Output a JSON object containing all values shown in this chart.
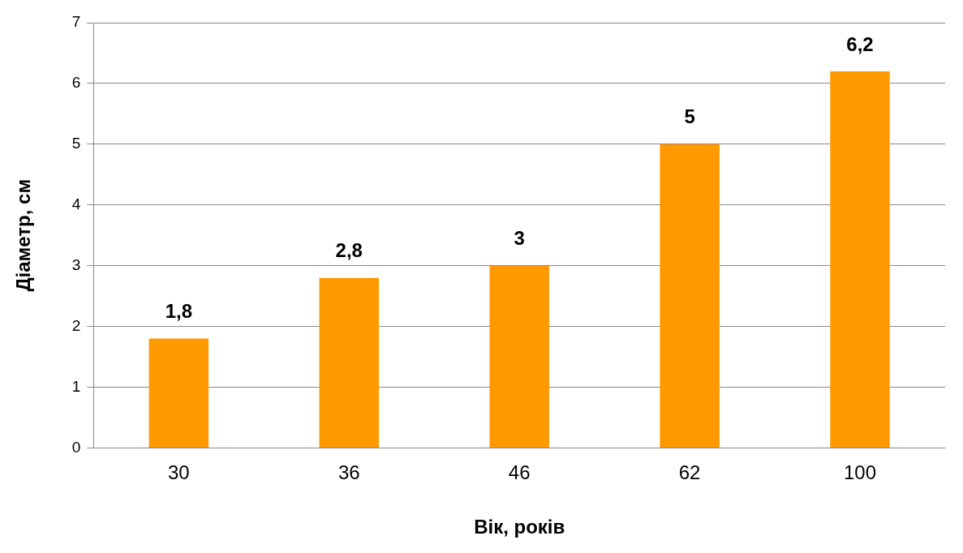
{
  "chart_data": {
    "type": "bar",
    "xlabel": "Вік, років",
    "ylabel": "Діаметр, см",
    "categories": [
      "30",
      "36",
      "46",
      "62",
      "100"
    ],
    "values": [
      1.8,
      2.8,
      3,
      5,
      6.2
    ],
    "value_labels": [
      "1,8",
      "2,8",
      "3",
      "5",
      "6,2"
    ],
    "color": "#ff9900",
    "ylim": [
      0,
      7
    ],
    "yticks": [
      0,
      1,
      2,
      3,
      4,
      5,
      6,
      7
    ],
    "grid": "y",
    "legend": false
  }
}
